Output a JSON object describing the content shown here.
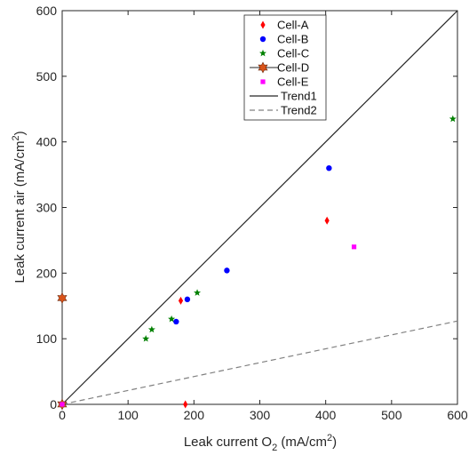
{
  "chart_data": {
    "type": "scatter",
    "title": "",
    "xlabel": {
      "prefix": "Leak current O",
      "sub": "2",
      "suffix": " (mA/cm",
      "sup": "2",
      "end": ")"
    },
    "ylabel": {
      "prefix": "Leak current air (mA/cm",
      "sup": "2",
      "end": ")"
    },
    "xlim": [
      0,
      600
    ],
    "ylim": [
      0,
      600
    ],
    "xticks": [
      0,
      100,
      200,
      300,
      400,
      500,
      600
    ],
    "yticks": [
      0,
      100,
      200,
      300,
      400,
      500,
      600
    ],
    "grid": false,
    "legend_position": "top-center",
    "series": [
      {
        "name": "Cell-A",
        "marker": "diamond",
        "color": "#ff0000",
        "x": [
          0,
          187,
          180,
          402
        ],
        "y": [
          0,
          0,
          158,
          280
        ]
      },
      {
        "name": "Cell-B",
        "marker": "circle",
        "color": "#0000ff",
        "x": [
          0,
          173,
          190,
          250,
          405
        ],
        "y": [
          0,
          126,
          160,
          204,
          360
        ]
      },
      {
        "name": "Cell-C",
        "marker": "star",
        "color": "#008000",
        "x": [
          0,
          127,
          136,
          166,
          205,
          593
        ],
        "y": [
          0,
          100,
          114,
          130,
          170,
          435
        ]
      },
      {
        "name": "Cell-D",
        "marker": "hexagram",
        "color": "#d95319",
        "line": true,
        "x": [
          0,
          0
        ],
        "y": [
          0,
          162
        ]
      },
      {
        "name": "Cell-E",
        "marker": "square",
        "color": "#ff00ff",
        "x": [
          0,
          443
        ],
        "y": [
          0,
          240
        ]
      },
      {
        "name": "Trend1",
        "line_style": "solid",
        "color": "#262626",
        "x": [
          0,
          600
        ],
        "y": [
          0,
          600
        ]
      },
      {
        "name": "Trend2",
        "line_style": "dashed",
        "color": "#808080",
        "x": [
          0,
          600
        ],
        "y": [
          0,
          127
        ]
      }
    ]
  }
}
